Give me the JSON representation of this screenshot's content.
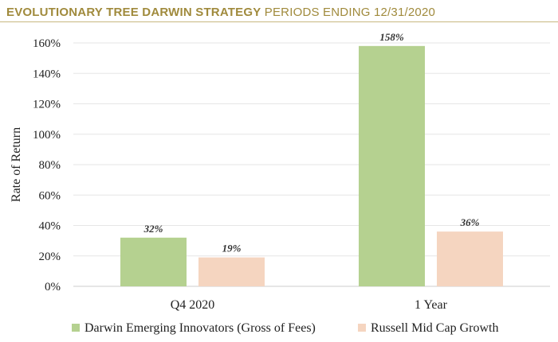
{
  "header": {
    "title_bold": "EVOLUTIONARY TREE DARWIN STRATEGY",
    "title_light": " PERIODS ENDING 12/31/2020"
  },
  "colors": {
    "title": "#a08a3c",
    "rule": "#c8b880",
    "series1": "#b5d190",
    "series2": "#f5d5c0",
    "grid": "#e6e6e6"
  },
  "chart_data": {
    "type": "bar",
    "categories": [
      "Q4 2020",
      "1 Year"
    ],
    "series": [
      {
        "name": "Darwin Emerging Innovators (Gross of Fees)",
        "values": [
          32,
          158
        ],
        "labels": [
          "32%",
          "158%"
        ]
      },
      {
        "name": "Russell Mid Cap Growth",
        "values": [
          19,
          36
        ],
        "labels": [
          "19%",
          "36%"
        ]
      }
    ],
    "ylabel": "Rate of Return",
    "ylim": [
      0,
      160
    ],
    "yticks": [
      "0%",
      "20%",
      "40%",
      "60%",
      "80%",
      "100%",
      "120%",
      "140%",
      "160%"
    ],
    "grid": true,
    "legend_position": "bottom"
  }
}
